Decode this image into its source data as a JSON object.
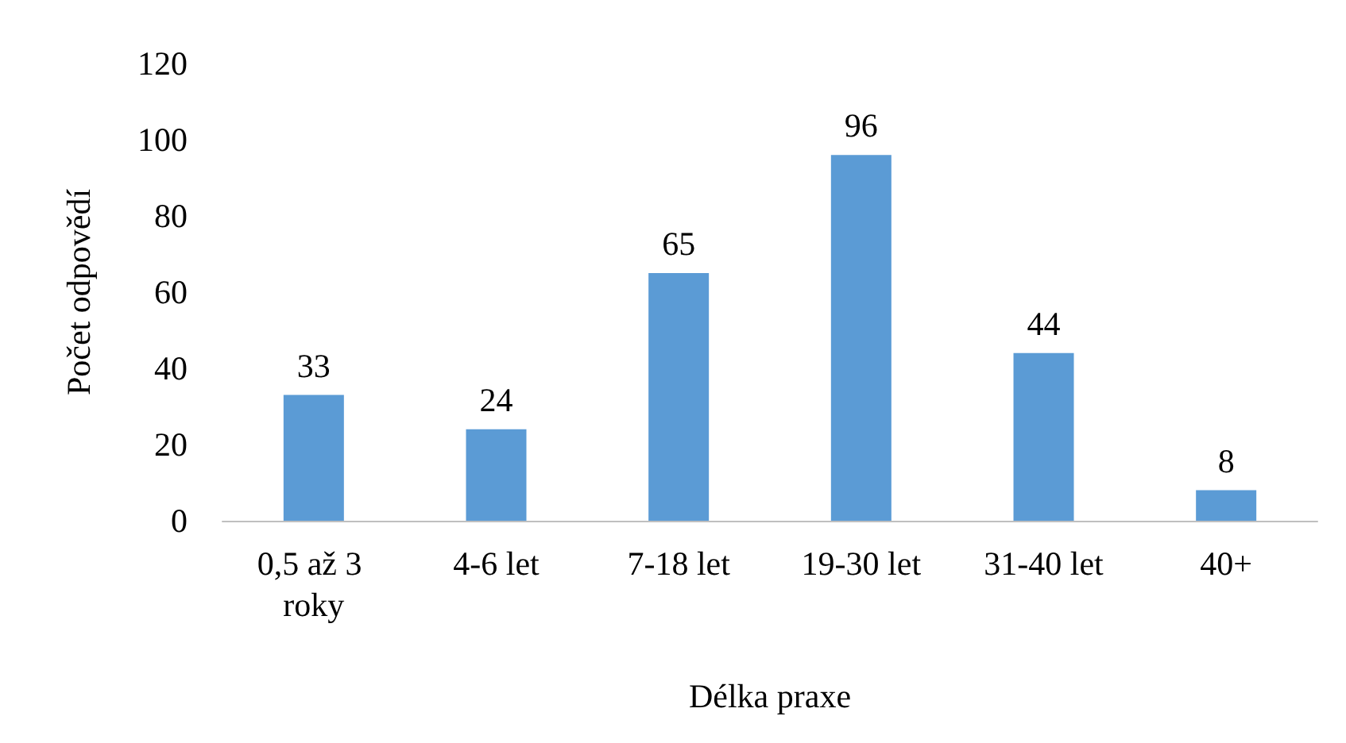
{
  "chart_data": {
    "type": "bar",
    "xlabel": "Délka praxe",
    "ylabel": "Počet odpovědí",
    "categories": [
      "0,5 až 3 roky",
      "4-6 let",
      "7-18 let",
      "19-30 let",
      "31-40 let",
      "40+"
    ],
    "values": [
      33,
      24,
      65,
      96,
      44,
      8
    ],
    "color": "#5b9bd5",
    "ylim": [
      0,
      120
    ],
    "yticks": [
      0,
      20,
      40,
      60,
      80,
      100,
      120
    ],
    "grid": false,
    "data_labels": true
  }
}
